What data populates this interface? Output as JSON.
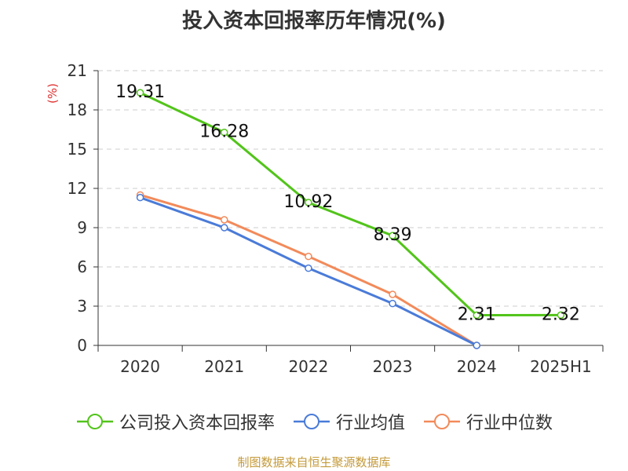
{
  "title": "投入资本回报率历年情况(%)",
  "y_unit": "(%)",
  "source_text": "制图数据来自恒生聚源数据库",
  "colors": {
    "series": [
      "#52c41a",
      "#4a7bd8",
      "#f28a5a"
    ],
    "grid": "#cccccc",
    "axis": "#333333",
    "tick_text": "#333333"
  },
  "chart_data": {
    "type": "line",
    "categories": [
      "2020",
      "2021",
      "2022",
      "2023",
      "2024",
      "2025H1"
    ],
    "ylim": [
      0,
      21
    ],
    "yticks": [
      0,
      3,
      6,
      9,
      12,
      15,
      18,
      21
    ],
    "grid": "horizontal dashed",
    "legend_position": "bottom",
    "series": [
      {
        "name": "公司投入资本回报率",
        "values": [
          19.31,
          16.28,
          10.92,
          8.39,
          2.31,
          2.32
        ],
        "labels": [
          "19.31",
          "16.28",
          "10.92",
          "8.39",
          "2.31",
          "2.32"
        ]
      },
      {
        "name": "行业均值",
        "values": [
          11.3,
          9.0,
          5.9,
          3.2,
          0.0,
          null
        ]
      },
      {
        "name": "行业中位数",
        "values": [
          11.5,
          9.6,
          6.8,
          3.9,
          0.0,
          null
        ]
      }
    ]
  }
}
